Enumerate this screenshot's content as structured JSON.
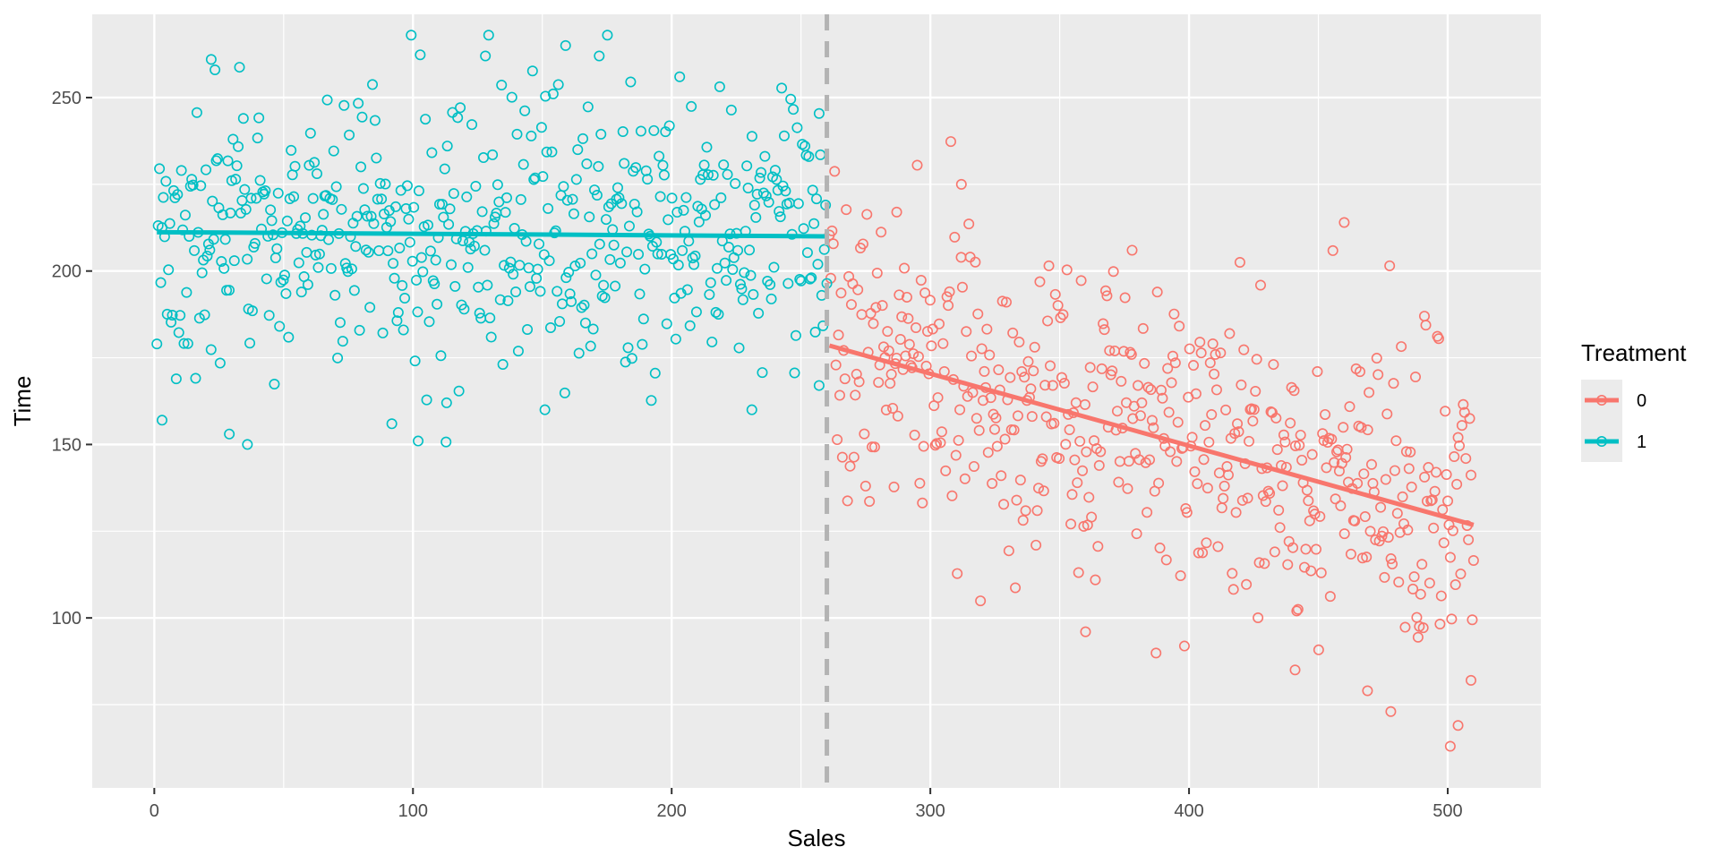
{
  "chart_data": {
    "type": "scatter",
    "title": "",
    "xlabel": "Sales",
    "ylabel": "Time",
    "xlim": [
      -24,
      536
    ],
    "ylim": [
      51,
      274
    ],
    "x_ticks": [
      0,
      100,
      200,
      300,
      400,
      500
    ],
    "y_ticks": [
      100,
      150,
      200,
      250
    ],
    "grid": true,
    "cutoff": {
      "x": 260,
      "style": "dashed",
      "color": "#b3b3b3"
    },
    "legend": {
      "title": "Treatment",
      "placement": "right"
    },
    "series": [
      {
        "name": "0",
        "color": "#F8766D",
        "x_range": [
          261,
          510
        ],
        "n_points": 500,
        "trend": {
          "x0": 261,
          "y0": 178.5,
          "x1": 510,
          "y1": 126.8
        },
        "noise_sd": 22,
        "seed": 7,
        "notable_points": [
          {
            "x": 312,
            "y": 225
          },
          {
            "x": 460,
            "y": 214
          },
          {
            "x": 378,
            "y": 206
          },
          {
            "x": 287,
            "y": 217
          },
          {
            "x": 360,
            "y": 96
          },
          {
            "x": 441,
            "y": 85
          },
          {
            "x": 469,
            "y": 79
          },
          {
            "x": 478,
            "y": 73
          },
          {
            "x": 504,
            "y": 69
          },
          {
            "x": 501,
            "y": 63
          },
          {
            "x": 509,
            "y": 82
          },
          {
            "x": 491,
            "y": 187
          }
        ]
      },
      {
        "name": "1",
        "color": "#00BFC4",
        "x_range": [
          1,
          260
        ],
        "n_points": 520,
        "trend": {
          "x0": 1,
          "y0": 211.2,
          "x1": 260,
          "y1": 210.0
        },
        "noise_sd": 20,
        "seed": 3,
        "notable_points": [
          {
            "x": 159,
            "y": 265
          },
          {
            "x": 22,
            "y": 261
          },
          {
            "x": 128,
            "y": 262
          },
          {
            "x": 172,
            "y": 262
          },
          {
            "x": 36,
            "y": 150
          },
          {
            "x": 102,
            "y": 151
          },
          {
            "x": 29,
            "y": 153
          },
          {
            "x": 3,
            "y": 157
          },
          {
            "x": 151,
            "y": 160
          },
          {
            "x": 231,
            "y": 160
          },
          {
            "x": 113,
            "y": 162
          },
          {
            "x": 257,
            "y": 167
          }
        ]
      }
    ]
  }
}
